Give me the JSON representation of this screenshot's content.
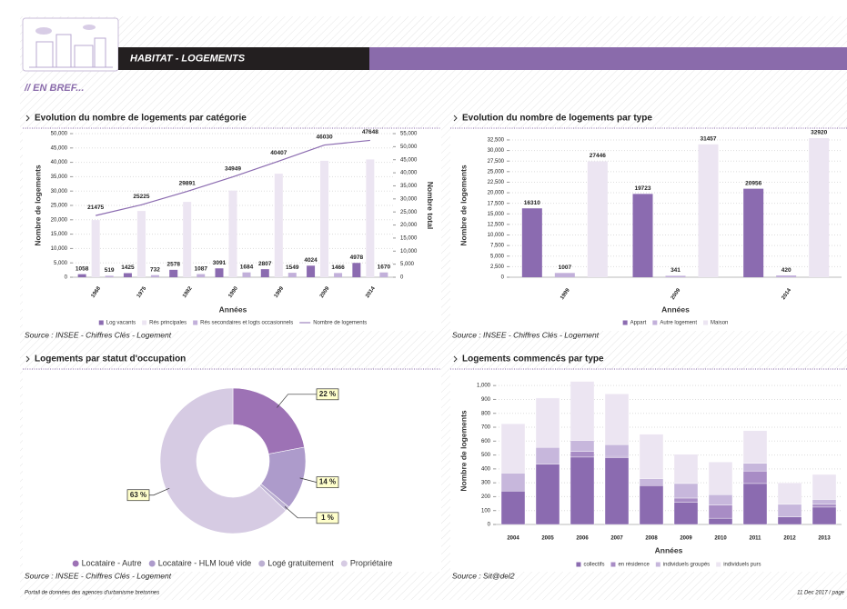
{
  "header": {
    "title": "HABITAT - LOGEMENTS",
    "section": "// EN BREF..."
  },
  "chart_data": [
    {
      "type": "bar_line",
      "title": "Evolution du nombre de logements par catégorie",
      "source": "Source : INSEE - Chiffres Clés - Logement",
      "categories": [
        "1968",
        "1975",
        "1982",
        "1990",
        "1999",
        "2009",
        "2014"
      ],
      "x_label": "Années",
      "y_label": "Nombre de logements",
      "y2_label": "Nombre total",
      "series": [
        {
          "name": "Log vacants",
          "color": "#8b6bb0",
          "labels": true,
          "values": [
            1058,
            1425,
            2578,
            3091,
            2807,
            4024,
            4978
          ]
        },
        {
          "name": "Rés principales",
          "color": "#ece5f2",
          "labels": false,
          "values": [
            19898,
            23068,
            26226,
            30174,
            36051,
            40540,
            41000
          ]
        },
        {
          "name": "Rés secondaires et logts occasionnels",
          "color": "#c2b0da",
          "labels": true,
          "values": [
            519,
            732,
            1087,
            1684,
            1549,
            1466,
            1670
          ]
        },
        {
          "name": "Nombre de logements",
          "type": "line",
          "color": "#8b6bb0",
          "labels": true,
          "values": [
            21475,
            25225,
            29891,
            34949,
            40407,
            46030,
            47648
          ]
        }
      ],
      "ylim": [
        0,
        50000
      ],
      "yticks": [
        0,
        {
          "value": 5000,
          "label": "5,000"
        },
        {
          "value": 10000,
          "label": "10,000"
        },
        {
          "value": 15000,
          "label": "15,000"
        },
        {
          "value": 20000,
          "label": "20,000"
        },
        {
          "value": 25000,
          "label": "25,000"
        },
        {
          "value": 30000,
          "label": "30,000"
        },
        {
          "value": 35000,
          "label": "35,000"
        },
        {
          "value": 40000,
          "label": "40,000"
        },
        {
          "value": 45000,
          "label": "45,000"
        },
        {
          "value": 50000,
          "label": "50,000"
        }
      ],
      "y2lim": [
        0,
        55000
      ],
      "y2ticks": [
        0,
        {
          "value": 5000,
          "label": "5,000"
        },
        {
          "value": 10000,
          "label": "10,000"
        },
        {
          "value": 15000,
          "label": "15,000"
        },
        {
          "value": 20000,
          "label": "20,000"
        },
        {
          "value": 25000,
          "label": "25,000"
        },
        {
          "value": 30000,
          "label": "30,000"
        },
        {
          "value": 35000,
          "label": "35,000"
        },
        {
          "value": 40000,
          "label": "40,000"
        },
        {
          "value": 45000,
          "label": "45,000"
        },
        {
          "value": 50000,
          "label": "50,000"
        },
        {
          "value": 55000,
          "label": "55,000"
        }
      ],
      "grid": true
    },
    {
      "type": "bar",
      "title": "Evolution du nombre de logements par type",
      "source": "Source : INSEE - Chiffres Clés - Logement",
      "categories": [
        "1999",
        "2009",
        "2014"
      ],
      "x_label": "Années",
      "y_label": "Nombre de logements",
      "series": [
        {
          "name": "Appart",
          "color": "#8b6bb0",
          "labels": true,
          "values": [
            16310,
            19723,
            20956
          ]
        },
        {
          "name": "Autre logement",
          "color": "#c2b0da",
          "labels": true,
          "values": [
            1007,
            341,
            420
          ]
        },
        {
          "name": "Maison",
          "color": "#ece5f2",
          "labels": true,
          "values": [
            27446,
            31457,
            32920
          ]
        }
      ],
      "ylim": [
        0,
        34000
      ],
      "yticks": [
        0,
        {
          "value": 2500,
          "label": "2,500"
        },
        {
          "value": 5000,
          "label": "5,000"
        },
        {
          "value": 7500,
          "label": "7,500"
        },
        {
          "value": 10000,
          "label": "10,000"
        },
        {
          "value": 12500,
          "label": "12,500"
        },
        {
          "value": 15000,
          "label": "15,000"
        },
        {
          "value": 17500,
          "label": "17,500"
        },
        {
          "value": 20000,
          "label": "20,000"
        },
        {
          "value": 22500,
          "label": "22,500"
        },
        {
          "value": 25000,
          "label": "25,000"
        },
        {
          "value": 27500,
          "label": "27,500"
        },
        {
          "value": 30000,
          "label": "30,000"
        },
        {
          "value": 32500,
          "label": "32,500"
        }
      ],
      "grid": true
    },
    {
      "type": "donut",
      "title": "Logements par statut d'occupation",
      "source": "Source : INSEE - Chiffres Clés - Logement",
      "categories": [
        "Locataire - Autre",
        "Locataire - HLM loué vide",
        "Logé gratuitement",
        "Propriétaire"
      ],
      "values": [
        22,
        14,
        1,
        63
      ],
      "value_labels": [
        "22 %",
        "14 %",
        "1 %",
        "63 %"
      ],
      "colors": [
        "#9d72b5",
        "#ad9bcb",
        "#bcb0d2",
        "#d6cbe3"
      ]
    },
    {
      "type": "stacked_bar",
      "title": "Logements commencés par type",
      "source": "Source : Sit@del2",
      "categories": [
        "2004",
        "2005",
        "2006",
        "2007",
        "2008",
        "2009",
        "2010",
        "2011",
        "2012",
        "2013"
      ],
      "x_label": "Années",
      "y_label": "Nombre de logements",
      "series": [
        {
          "name": "collectifs",
          "color": "#8b6bb0",
          "values": [
            240,
            435,
            485,
            480,
            280,
            160,
            45,
            295,
            55,
            125
          ]
        },
        {
          "name": "en résidence",
          "color": "#a88cc5",
          "values": [
            0,
            0,
            40,
            10,
            0,
            30,
            95,
            90,
            0,
            20
          ]
        },
        {
          "name": "individuels groupés",
          "color": "#c7b7dc",
          "values": [
            130,
            120,
            80,
            85,
            50,
            105,
            75,
            55,
            90,
            35
          ]
        },
        {
          "name": "individuels purs",
          "color": "#ece5f2",
          "values": [
            355,
            355,
            425,
            365,
            320,
            210,
            235,
            235,
            155,
            180
          ]
        }
      ],
      "ylim": [
        0,
        1060
      ],
      "yticks": [
        0,
        100,
        200,
        300,
        400,
        500,
        600,
        700,
        800,
        900,
        {
          "value": 1000,
          "label": "1,000"
        }
      ],
      "grid": true
    }
  ],
  "footer": {
    "left": "Portail de données des agences d'urbanisme bretonnes",
    "right": "11 Dec 2017 / page"
  }
}
